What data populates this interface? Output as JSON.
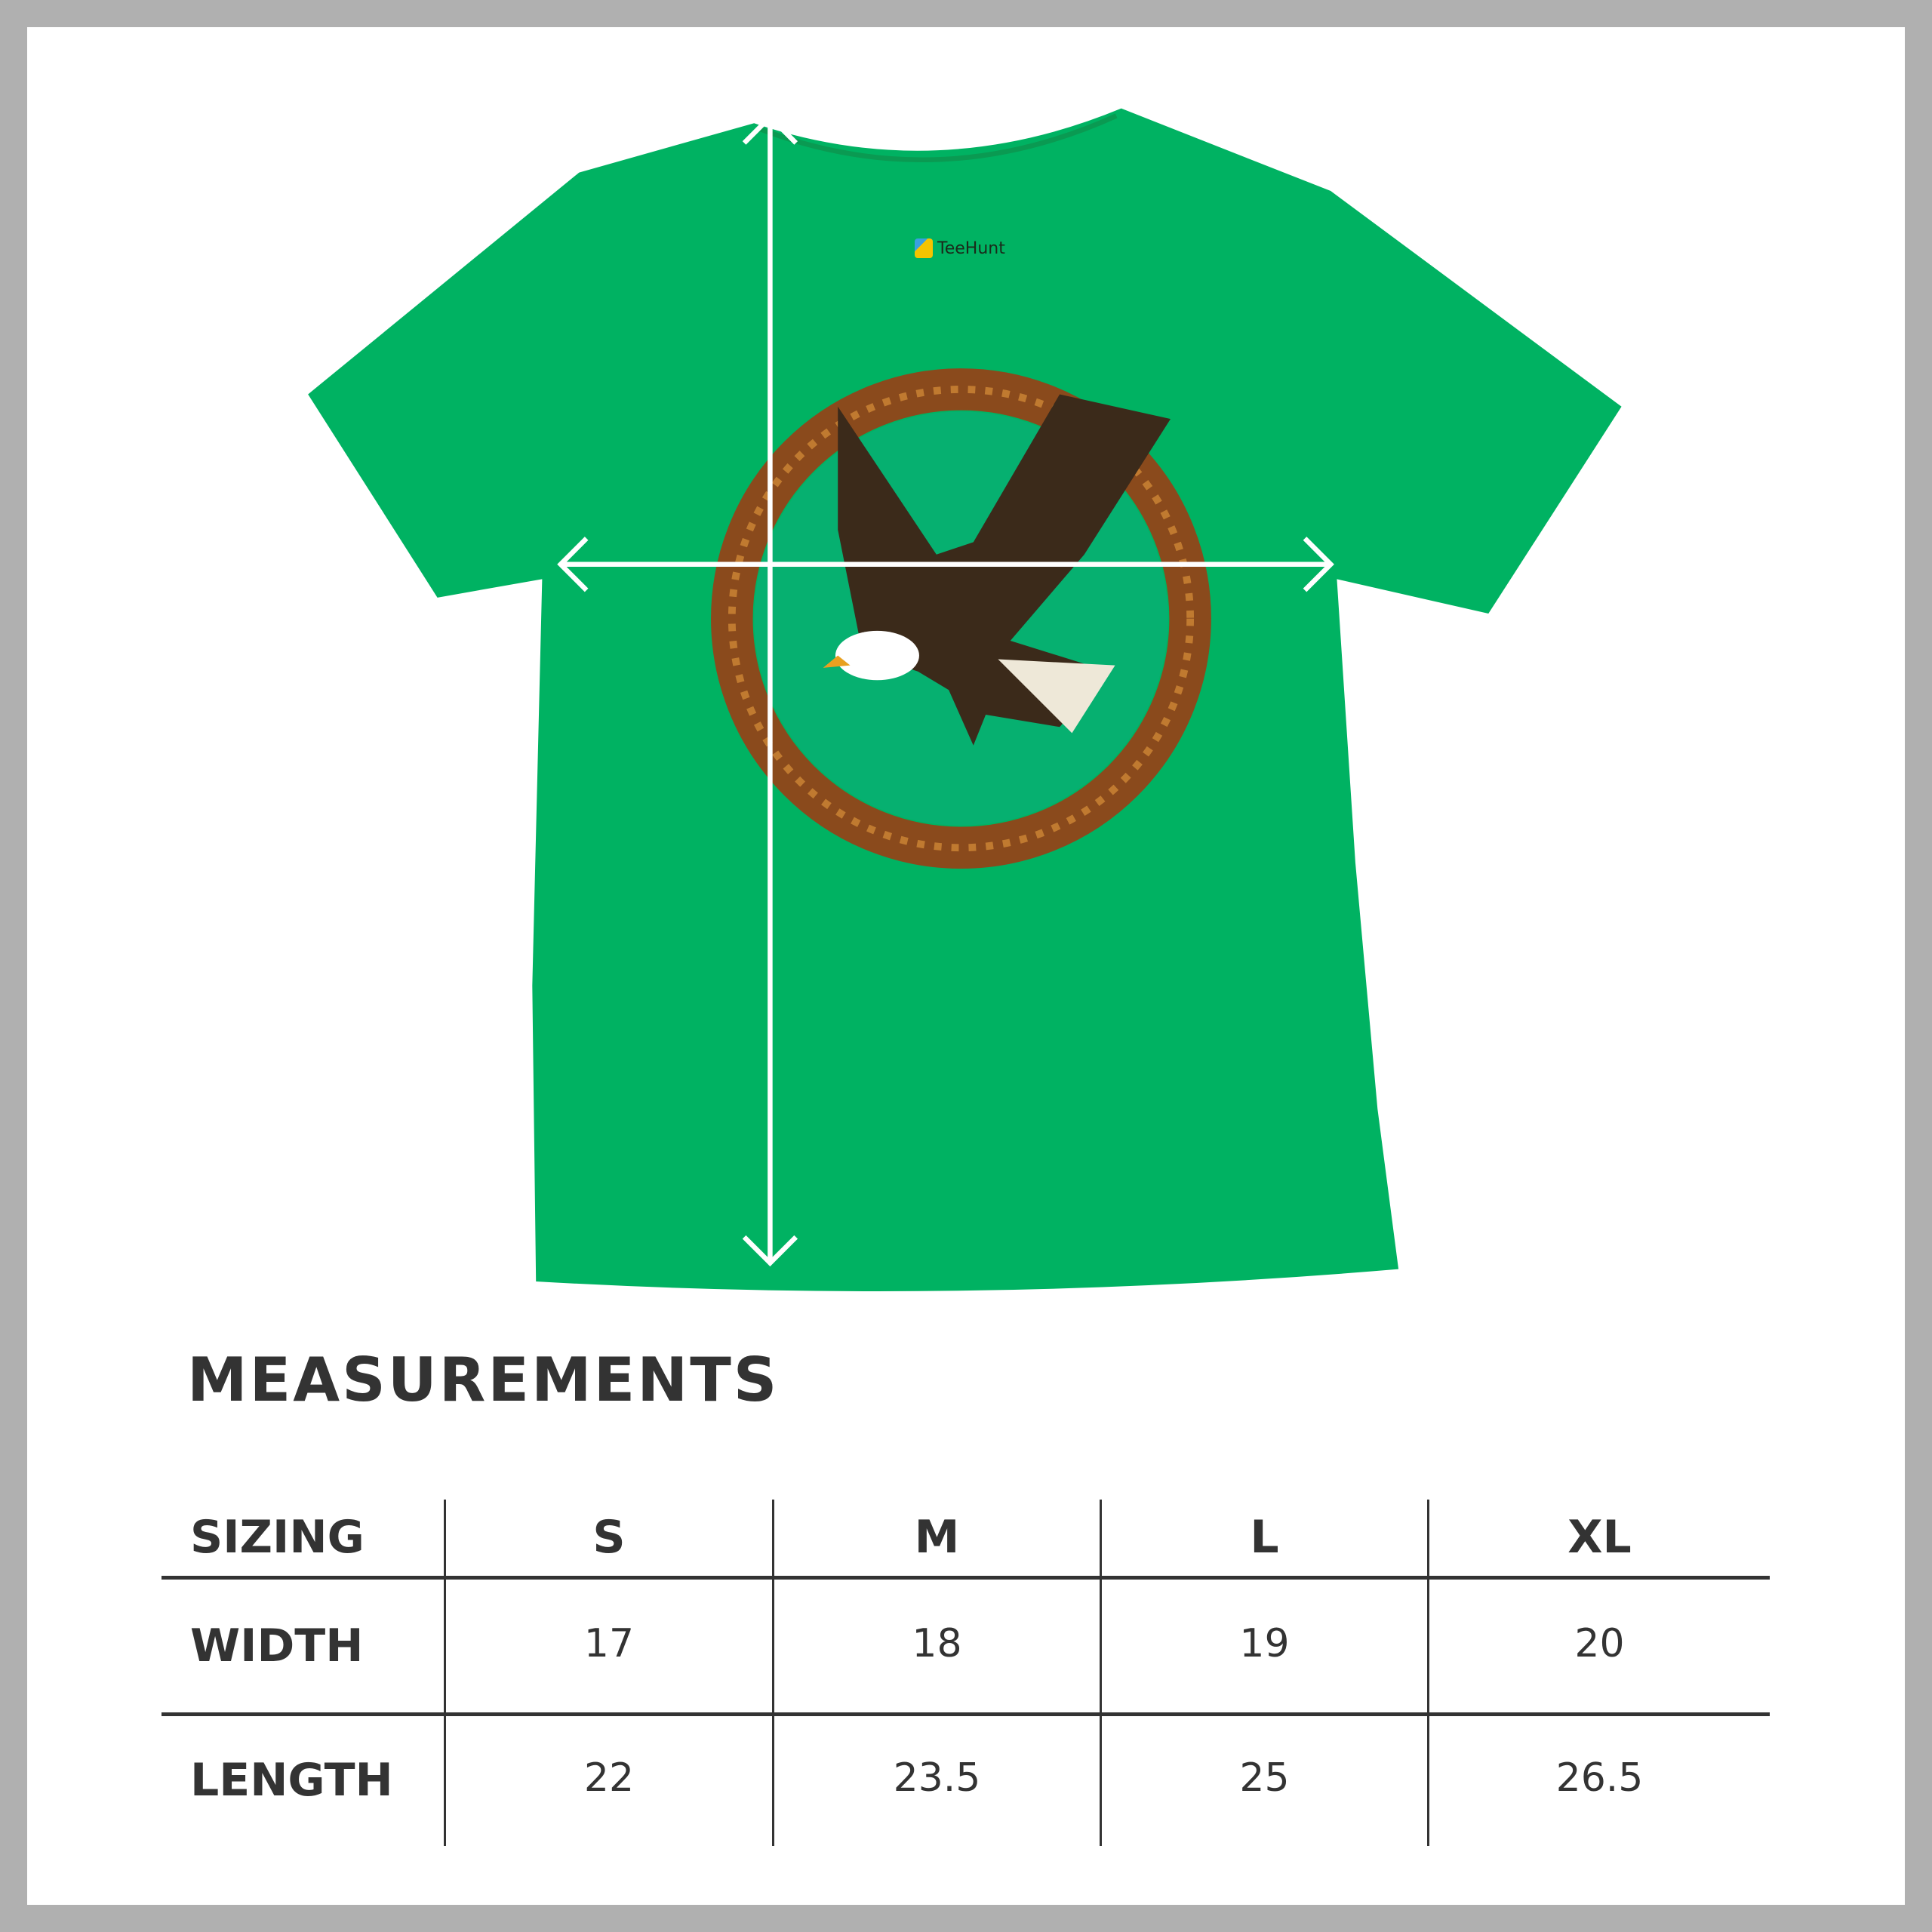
{
  "colors": {
    "shirt": "#00b262",
    "ring": "#8a4a1c",
    "text": "#333333",
    "border": "#b0b0b0"
  },
  "brand": {
    "label": "TeeHunt"
  },
  "title": "MEASUREMENTS",
  "table": {
    "header": [
      "SIZING",
      "S",
      "M",
      "L",
      "XL"
    ],
    "rows": [
      {
        "label": "WIDTH",
        "values": [
          "17",
          "18",
          "19",
          "20"
        ]
      },
      {
        "label": "LENGTH",
        "values": [
          "22",
          "23.5",
          "25",
          "26.5"
        ]
      }
    ]
  }
}
